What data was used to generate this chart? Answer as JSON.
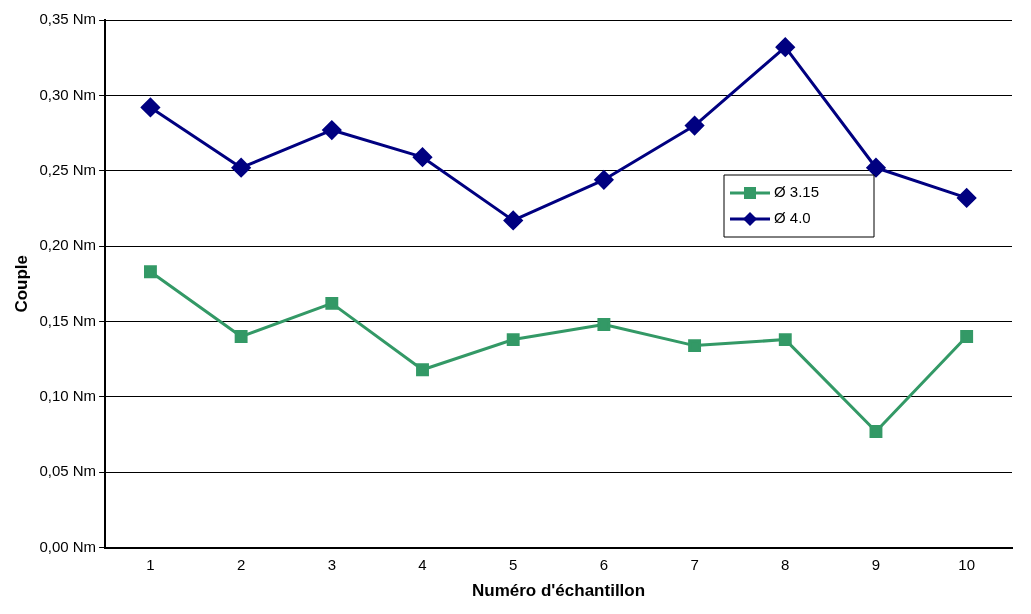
{
  "chart_data": {
    "type": "line",
    "xlabel": "Numéro d'échantillon",
    "ylabel": "Couple",
    "categories": [
      "1",
      "2",
      "3",
      "4",
      "5",
      "6",
      "7",
      "8",
      "9",
      "10"
    ],
    "series": [
      {
        "name": "Ø 3.15",
        "color": "#339966",
        "marker": "square",
        "values": [
          0.183,
          0.14,
          0.162,
          0.118,
          0.138,
          0.148,
          0.134,
          0.138,
          0.077,
          0.14
        ]
      },
      {
        "name": "Ø 4.0",
        "color": "#000080",
        "marker": "diamond",
        "values": [
          0.292,
          0.252,
          0.277,
          0.259,
          0.217,
          0.244,
          0.28,
          0.332,
          0.252,
          0.232
        ]
      }
    ],
    "ylim": [
      0,
      0.35
    ],
    "yticks": [
      {
        "value": 0,
        "label": "0,00 Nm"
      },
      {
        "value": 0.05,
        "label": "0,05 Nm"
      },
      {
        "value": 0.1,
        "label": "0,10 Nm"
      },
      {
        "value": 0.15,
        "label": "0,15 Nm"
      },
      {
        "value": 0.2,
        "label": "0,20 Nm"
      },
      {
        "value": 0.25,
        "label": "0,25 Nm"
      },
      {
        "value": 0.3,
        "label": "0,30 Nm"
      },
      {
        "value": 0.35,
        "label": "0,35 Nm"
      }
    ],
    "grid": "y",
    "legend": "right",
    "line_style": "solid"
  }
}
